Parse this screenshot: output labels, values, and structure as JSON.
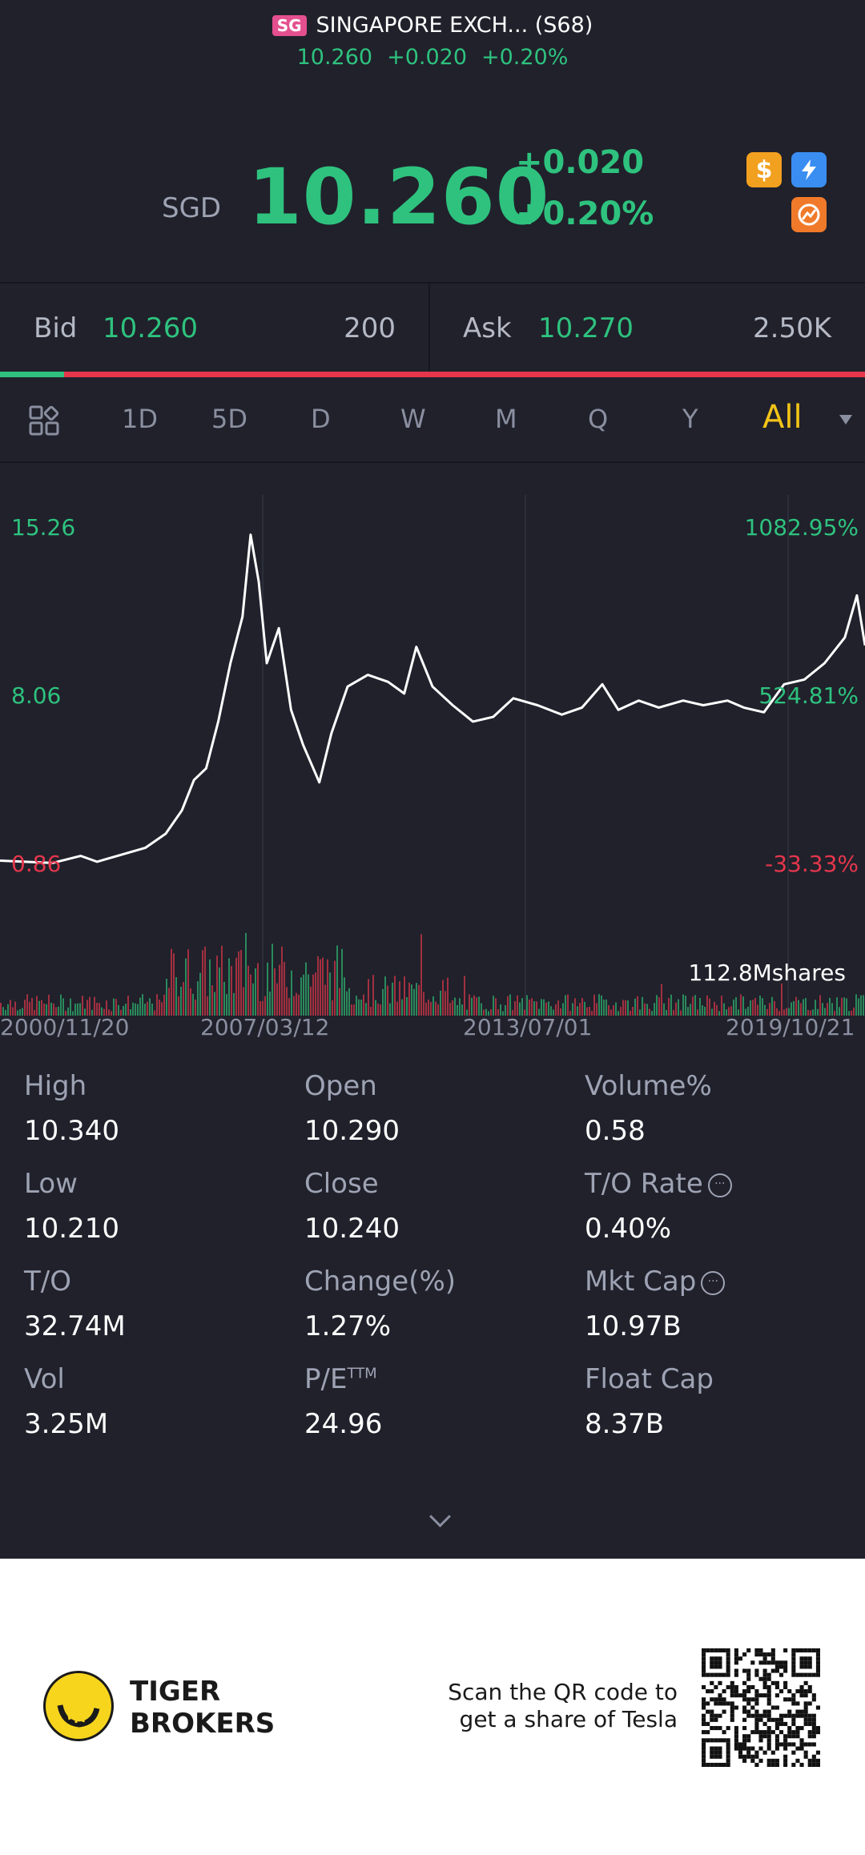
{
  "header": {
    "exchange_badge": "SG",
    "title": "SINGAPORE EXCH... (S68)",
    "price": "10.260",
    "change": "+0.020",
    "change_pct": "+0.20%"
  },
  "quote": {
    "currency": "SGD",
    "price": "10.260",
    "change": "+0.020",
    "change_pct": "+0.20%",
    "icons": [
      "dollar-icon",
      "lightning-icon",
      "pie-icon"
    ],
    "icon_text": {
      "dollar": "$",
      "bolt": "⚡"
    }
  },
  "bid_ask": {
    "bid_label": "Bid",
    "bid_price": "10.260",
    "bid_size": "200",
    "ask_label": "Ask",
    "ask_price": "10.270",
    "ask_size": "2.50K",
    "buy_ratio": 0.074
  },
  "tabs": {
    "items": [
      "1D",
      "5D",
      "D",
      "W",
      "M",
      "Q",
      "Y",
      "All"
    ],
    "active": "All"
  },
  "chart_data": {
    "type": "line",
    "y_left_ticks": [
      "15.26",
      "8.06",
      "0.86"
    ],
    "y_right_ticks": [
      "1082.95%",
      "524.81%",
      "-33.33%"
    ],
    "x_ticks": [
      "2000/11/20",
      "2007/03/12",
      "2013/07/01",
      "2019/10/21"
    ],
    "volume_label": "112.8Mshares",
    "price_series": [
      [
        2000.9,
        1.05
      ],
      [
        2001.5,
        1.0
      ],
      [
        2002.2,
        0.95
      ],
      [
        2002.9,
        1.25
      ],
      [
        2003.3,
        1.0
      ],
      [
        2003.9,
        1.3
      ],
      [
        2004.5,
        1.6
      ],
      [
        2005.0,
        2.2
      ],
      [
        2005.4,
        3.2
      ],
      [
        2005.7,
        4.5
      ],
      [
        2006.0,
        5.0
      ],
      [
        2006.3,
        7.0
      ],
      [
        2006.6,
        9.5
      ],
      [
        2006.9,
        11.5
      ],
      [
        2007.1,
        15.0
      ],
      [
        2007.3,
        13.0
      ],
      [
        2007.5,
        9.5
      ],
      [
        2007.8,
        11.0
      ],
      [
        2008.1,
        7.5
      ],
      [
        2008.4,
        6.0
      ],
      [
        2008.8,
        4.4
      ],
      [
        2009.1,
        6.5
      ],
      [
        2009.5,
        8.5
      ],
      [
        2010.0,
        9.0
      ],
      [
        2010.5,
        8.7
      ],
      [
        2010.9,
        8.2
      ],
      [
        2011.2,
        10.2
      ],
      [
        2011.6,
        8.5
      ],
      [
        2012.1,
        7.7
      ],
      [
        2012.6,
        7.0
      ],
      [
        2013.1,
        7.2
      ],
      [
        2013.6,
        8.0
      ],
      [
        2014.2,
        7.7
      ],
      [
        2014.8,
        7.3
      ],
      [
        2015.3,
        7.6
      ],
      [
        2015.8,
        8.6
      ],
      [
        2016.2,
        7.5
      ],
      [
        2016.7,
        7.9
      ],
      [
        2017.2,
        7.6
      ],
      [
        2017.8,
        7.9
      ],
      [
        2018.3,
        7.7
      ],
      [
        2018.9,
        7.9
      ],
      [
        2019.3,
        7.6
      ],
      [
        2019.8,
        7.4
      ],
      [
        2020.3,
        8.6
      ],
      [
        2020.8,
        8.8
      ],
      [
        2021.3,
        9.5
      ],
      [
        2021.8,
        10.6
      ],
      [
        2022.1,
        12.4
      ],
      [
        2022.3,
        10.26
      ]
    ],
    "xlim": [
      2000.9,
      2022.3
    ],
    "ylim": [
      0.86,
      15.26
    ],
    "grid": true,
    "volume": true
  },
  "stats": [
    {
      "label": "High",
      "value": "10.340"
    },
    {
      "label": "Open",
      "value": "10.290"
    },
    {
      "label": "Volume%",
      "value": "0.58"
    },
    {
      "label": "Low",
      "value": "10.210"
    },
    {
      "label": "Close",
      "value": "10.240"
    },
    {
      "label": "T/O Rate",
      "value": "0.40%",
      "info": true
    },
    {
      "label": "T/O",
      "value": "32.74M"
    },
    {
      "label": "Change(%)",
      "value": "1.27%"
    },
    {
      "label": "Mkt Cap",
      "value": "10.97B",
      "info": true
    },
    {
      "label": "Vol",
      "value": "3.25M"
    },
    {
      "label": "P/E",
      "sup": "TTM",
      "value": "24.96"
    },
    {
      "label": "Float Cap",
      "value": "8.37B"
    }
  ],
  "footer": {
    "brand_line1": "TIGER",
    "brand_line2": "BROKERS",
    "scan_line1": "Scan the QR code to",
    "scan_line2": "get a share of Tesla"
  },
  "colors": {
    "background": "#20212b",
    "up": "#2ec27e",
    "down": "#e5364c",
    "accent": "#f2c418"
  }
}
